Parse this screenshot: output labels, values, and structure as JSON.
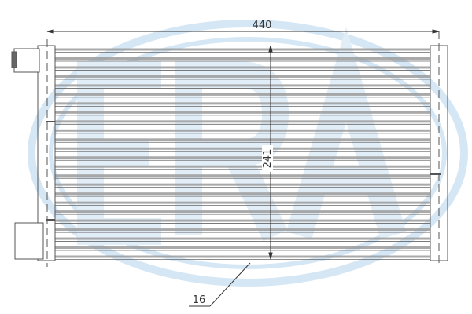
{
  "watermark": {
    "logo_text": "ERA",
    "color": "#cfe3f3"
  },
  "dimensions": {
    "width_label": "440",
    "height_label": "241",
    "callout_label": "16"
  },
  "colors": {
    "line": "#555555",
    "tube": "#8a8a8a"
  }
}
